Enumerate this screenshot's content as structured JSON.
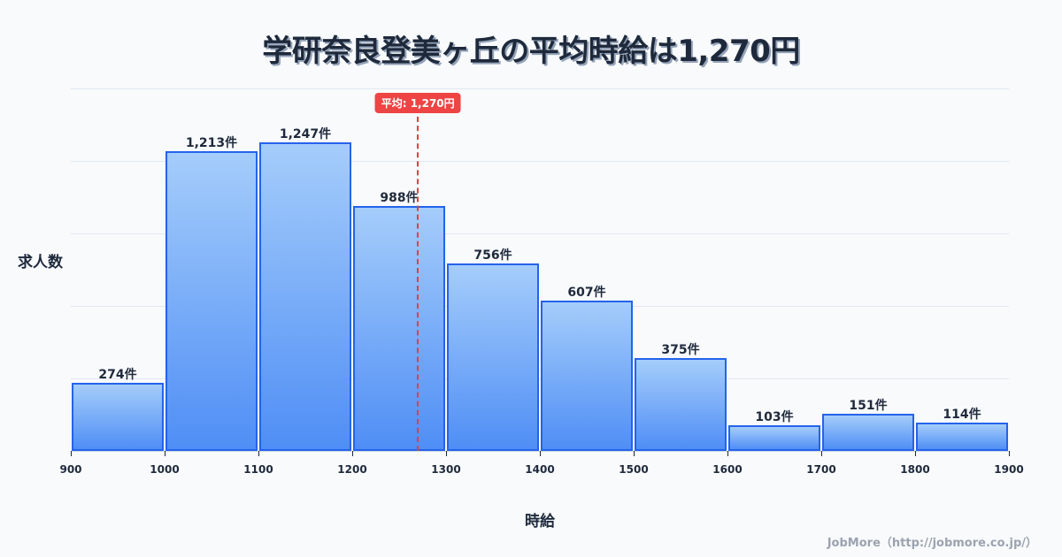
{
  "title": "学研奈良登美ヶ丘の平均時給は1,270円",
  "axis": {
    "ylabel": "求人数",
    "xlabel": "時給"
  },
  "mean": {
    "label": "平均: 1,270円",
    "value": 1270
  },
  "credit": "JobMore（http://jobmore.co.jp/）",
  "colors": {
    "bar_border": "#2563eb",
    "bar_top": "#a5cdfb",
    "bar_bottom": "#4f8ef5",
    "mean_line": "#ef4444",
    "text": "#1e293b",
    "background": "#f8fafc"
  },
  "chart_data": {
    "type": "bar",
    "subtype": "histogram",
    "title": "学研奈良登美ヶ丘の平均時給は1,270円",
    "xlabel": "時給",
    "ylabel": "求人数",
    "bins": [
      {
        "from": 900,
        "to": 1000,
        "value": 274,
        "label": "274件"
      },
      {
        "from": 1000,
        "to": 1100,
        "value": 1213,
        "label": "1,213件"
      },
      {
        "from": 1100,
        "to": 1200,
        "value": 1247,
        "label": "1,247件"
      },
      {
        "from": 1200,
        "to": 1300,
        "value": 988,
        "label": "988件"
      },
      {
        "from": 1300,
        "to": 1400,
        "value": 756,
        "label": "756件"
      },
      {
        "from": 1400,
        "to": 1500,
        "value": 607,
        "label": "607件"
      },
      {
        "from": 1500,
        "to": 1600,
        "value": 375,
        "label": "375件"
      },
      {
        "from": 1600,
        "to": 1700,
        "value": 103,
        "label": "103件"
      },
      {
        "from": 1700,
        "to": 1800,
        "value": 151,
        "label": "151件"
      },
      {
        "from": 1800,
        "to": 1900,
        "value": 114,
        "label": "114件"
      }
    ],
    "categories": [
      "900-1000",
      "1000-1100",
      "1100-1200",
      "1200-1300",
      "1300-1400",
      "1400-1500",
      "1500-1600",
      "1600-1700",
      "1700-1800",
      "1800-1900"
    ],
    "values": [
      274,
      1213,
      1247,
      988,
      756,
      607,
      375,
      103,
      151,
      114
    ],
    "x_ticks": [
      "900",
      "1000",
      "1100",
      "1200",
      "1300",
      "1400",
      "1500",
      "1600",
      "1700",
      "1800",
      "1900"
    ],
    "xlim": [
      900,
      1900
    ],
    "ylim": [
      0,
      1465
    ],
    "grid": true,
    "legend": null,
    "annotations": [
      {
        "type": "vline",
        "x": 1270,
        "label": "平均: 1,270円"
      }
    ]
  }
}
